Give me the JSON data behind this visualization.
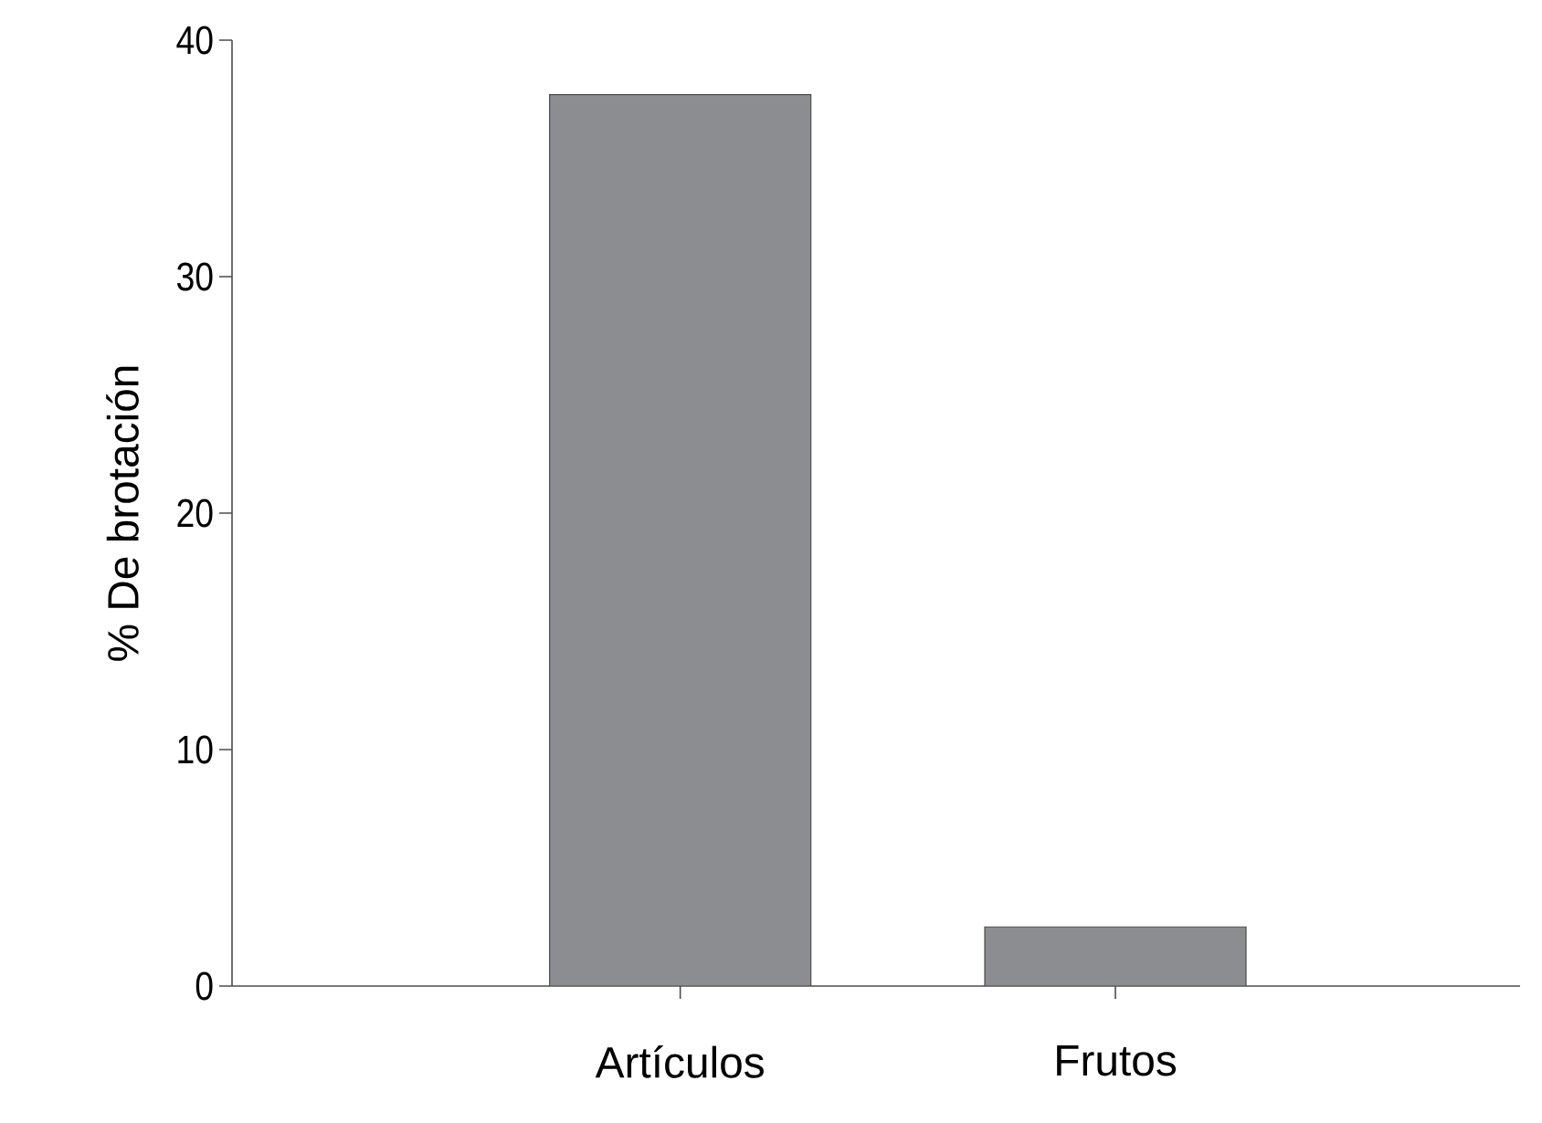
{
  "chart_data": {
    "type": "bar",
    "ylabel": "% De brotación",
    "categories": [
      "Artículos",
      "Frutos"
    ],
    "values": [
      37.7,
      2.5
    ],
    "color": "#8c8d91",
    "ylim": [
      0,
      40
    ],
    "yticks": [
      0,
      10,
      20,
      30,
      40
    ],
    "grid": false
  }
}
